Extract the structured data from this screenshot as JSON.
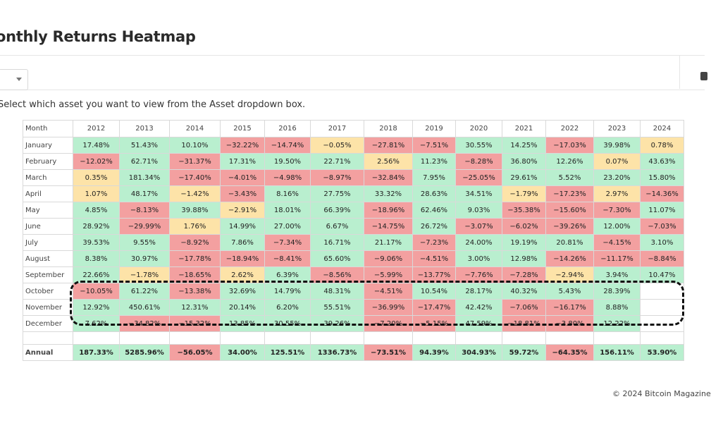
{
  "page": {
    "title": "onthly Returns Heatmap",
    "instruction": "Select which asset you want to view from the Asset dropdown box.",
    "footer": "© 2024 Bitcoin Magazine"
  },
  "colors": {
    "positive": "#b9efcf",
    "negative": "#f3a0a0",
    "mild": "#fde3a8"
  },
  "chart_data": {
    "type": "heatmap",
    "row_header": "Month",
    "years": [
      "2012",
      "2013",
      "2014",
      "2015",
      "2016",
      "2017",
      "2018",
      "2019",
      "2020",
      "2021",
      "2022",
      "2023",
      "2024"
    ],
    "rows": [
      {
        "label": "January",
        "cells": [
          {
            "t": "17.48%",
            "c": "pos"
          },
          {
            "t": "51.43%",
            "c": "pos"
          },
          {
            "t": "10.10%",
            "c": "pos"
          },
          {
            "t": "−32.22%",
            "c": "neg"
          },
          {
            "t": "−14.74%",
            "c": "neg"
          },
          {
            "t": "−0.05%",
            "c": "mild"
          },
          {
            "t": "−27.81%",
            "c": "neg"
          },
          {
            "t": "−7.51%",
            "c": "neg"
          },
          {
            "t": "30.55%",
            "c": "pos"
          },
          {
            "t": "14.25%",
            "c": "pos"
          },
          {
            "t": "−17.03%",
            "c": "neg"
          },
          {
            "t": "39.98%",
            "c": "pos"
          },
          {
            "t": "0.78%",
            "c": "mild"
          }
        ]
      },
      {
        "label": "February",
        "cells": [
          {
            "t": "−12.02%",
            "c": "neg"
          },
          {
            "t": "62.71%",
            "c": "pos"
          },
          {
            "t": "−31.37%",
            "c": "neg"
          },
          {
            "t": "17.31%",
            "c": "pos"
          },
          {
            "t": "19.50%",
            "c": "pos"
          },
          {
            "t": "22.71%",
            "c": "pos"
          },
          {
            "t": "2.56%",
            "c": "mild"
          },
          {
            "t": "11.23%",
            "c": "pos"
          },
          {
            "t": "−8.28%",
            "c": "neg"
          },
          {
            "t": "36.80%",
            "c": "pos"
          },
          {
            "t": "12.26%",
            "c": "pos"
          },
          {
            "t": "0.07%",
            "c": "mild"
          },
          {
            "t": "43.63%",
            "c": "pos"
          }
        ]
      },
      {
        "label": "March",
        "cells": [
          {
            "t": "0.35%",
            "c": "mild"
          },
          {
            "t": "181.34%",
            "c": "pos"
          },
          {
            "t": "−17.40%",
            "c": "neg"
          },
          {
            "t": "−4.01%",
            "c": "neg"
          },
          {
            "t": "−4.98%",
            "c": "neg"
          },
          {
            "t": "−8.97%",
            "c": "neg"
          },
          {
            "t": "−32.84%",
            "c": "neg"
          },
          {
            "t": "7.95%",
            "c": "pos"
          },
          {
            "t": "−25.05%",
            "c": "neg"
          },
          {
            "t": "29.61%",
            "c": "pos"
          },
          {
            "t": "5.52%",
            "c": "pos"
          },
          {
            "t": "23.20%",
            "c": "pos"
          },
          {
            "t": "15.80%",
            "c": "pos"
          }
        ]
      },
      {
        "label": "April",
        "cells": [
          {
            "t": "1.07%",
            "c": "mild"
          },
          {
            "t": "48.17%",
            "c": "pos"
          },
          {
            "t": "−1.42%",
            "c": "mild"
          },
          {
            "t": "−3.43%",
            "c": "neg"
          },
          {
            "t": "8.16%",
            "c": "pos"
          },
          {
            "t": "27.75%",
            "c": "pos"
          },
          {
            "t": "33.32%",
            "c": "pos"
          },
          {
            "t": "28.63%",
            "c": "pos"
          },
          {
            "t": "34.51%",
            "c": "pos"
          },
          {
            "t": "−1.79%",
            "c": "mild"
          },
          {
            "t": "−17.23%",
            "c": "neg"
          },
          {
            "t": "2.97%",
            "c": "mild"
          },
          {
            "t": "−14.36%",
            "c": "neg"
          }
        ]
      },
      {
        "label": "May",
        "cells": [
          {
            "t": "4.85%",
            "c": "pos"
          },
          {
            "t": "−8.13%",
            "c": "neg"
          },
          {
            "t": "39.88%",
            "c": "pos"
          },
          {
            "t": "−2.91%",
            "c": "mild"
          },
          {
            "t": "18.01%",
            "c": "pos"
          },
          {
            "t": "66.39%",
            "c": "pos"
          },
          {
            "t": "−18.96%",
            "c": "neg"
          },
          {
            "t": "62.46%",
            "c": "pos"
          },
          {
            "t": "9.03%",
            "c": "pos"
          },
          {
            "t": "−35.38%",
            "c": "neg"
          },
          {
            "t": "−15.60%",
            "c": "neg"
          },
          {
            "t": "−7.30%",
            "c": "neg"
          },
          {
            "t": "11.07%",
            "c": "pos"
          }
        ]
      },
      {
        "label": "June",
        "cells": [
          {
            "t": "28.92%",
            "c": "pos"
          },
          {
            "t": "−29.99%",
            "c": "neg"
          },
          {
            "t": "1.76%",
            "c": "mild"
          },
          {
            "t": "14.99%",
            "c": "pos"
          },
          {
            "t": "27.00%",
            "c": "pos"
          },
          {
            "t": "6.67%",
            "c": "pos"
          },
          {
            "t": "−14.75%",
            "c": "neg"
          },
          {
            "t": "26.72%",
            "c": "pos"
          },
          {
            "t": "−3.07%",
            "c": "neg"
          },
          {
            "t": "−6.02%",
            "c": "neg"
          },
          {
            "t": "−39.26%",
            "c": "neg"
          },
          {
            "t": "12.00%",
            "c": "pos"
          },
          {
            "t": "−7.03%",
            "c": "neg"
          }
        ]
      },
      {
        "label": "July",
        "cells": [
          {
            "t": "39.53%",
            "c": "pos"
          },
          {
            "t": "9.55%",
            "c": "pos"
          },
          {
            "t": "−8.92%",
            "c": "neg"
          },
          {
            "t": "7.86%",
            "c": "pos"
          },
          {
            "t": "−7.34%",
            "c": "neg"
          },
          {
            "t": "16.71%",
            "c": "pos"
          },
          {
            "t": "21.17%",
            "c": "pos"
          },
          {
            "t": "−7.23%",
            "c": "neg"
          },
          {
            "t": "24.00%",
            "c": "pos"
          },
          {
            "t": "19.19%",
            "c": "pos"
          },
          {
            "t": "20.81%",
            "c": "pos"
          },
          {
            "t": "−4.15%",
            "c": "neg"
          },
          {
            "t": "3.10%",
            "c": "pos"
          }
        ]
      },
      {
        "label": "August",
        "cells": [
          {
            "t": "8.38%",
            "c": "pos"
          },
          {
            "t": "30.97%",
            "c": "pos"
          },
          {
            "t": "−17.78%",
            "c": "neg"
          },
          {
            "t": "−18.94%",
            "c": "neg"
          },
          {
            "t": "−8.41%",
            "c": "neg"
          },
          {
            "t": "65.60%",
            "c": "pos"
          },
          {
            "t": "−9.06%",
            "c": "neg"
          },
          {
            "t": "−4.51%",
            "c": "neg"
          },
          {
            "t": "3.00%",
            "c": "pos"
          },
          {
            "t": "12.98%",
            "c": "pos"
          },
          {
            "t": "−14.26%",
            "c": "neg"
          },
          {
            "t": "−11.17%",
            "c": "neg"
          },
          {
            "t": "−8.84%",
            "c": "neg"
          }
        ]
      },
      {
        "label": "September",
        "cells": [
          {
            "t": "22.66%",
            "c": "pos"
          },
          {
            "t": "−1.78%",
            "c": "mild"
          },
          {
            "t": "−18.65%",
            "c": "neg"
          },
          {
            "t": "2.62%",
            "c": "mild"
          },
          {
            "t": "6.39%",
            "c": "pos"
          },
          {
            "t": "−8.56%",
            "c": "neg"
          },
          {
            "t": "−5.99%",
            "c": "neg"
          },
          {
            "t": "−13.77%",
            "c": "neg"
          },
          {
            "t": "−7.76%",
            "c": "neg"
          },
          {
            "t": "−7.28%",
            "c": "neg"
          },
          {
            "t": "−2.94%",
            "c": "mild"
          },
          {
            "t": "3.94%",
            "c": "pos"
          },
          {
            "t": "10.47%",
            "c": "pos"
          }
        ]
      },
      {
        "label": "October",
        "cells": [
          {
            "t": "−10.05%",
            "c": "neg"
          },
          {
            "t": "61.22%",
            "c": "pos"
          },
          {
            "t": "−13.38%",
            "c": "neg"
          },
          {
            "t": "32.69%",
            "c": "pos"
          },
          {
            "t": "14.79%",
            "c": "pos"
          },
          {
            "t": "48.31%",
            "c": "pos"
          },
          {
            "t": "−4.51%",
            "c": "neg"
          },
          {
            "t": "10.54%",
            "c": "pos"
          },
          {
            "t": "28.17%",
            "c": "pos"
          },
          {
            "t": "40.32%",
            "c": "pos"
          },
          {
            "t": "5.43%",
            "c": "pos"
          },
          {
            "t": "28.39%",
            "c": "pos"
          },
          {
            "t": "",
            "c": "empty"
          }
        ]
      },
      {
        "label": "November",
        "cells": [
          {
            "t": "12.92%",
            "c": "pos"
          },
          {
            "t": "450.61%",
            "c": "pos"
          },
          {
            "t": "12.31%",
            "c": "pos"
          },
          {
            "t": "20.14%",
            "c": "pos"
          },
          {
            "t": "6.20%",
            "c": "pos"
          },
          {
            "t": "55.51%",
            "c": "pos"
          },
          {
            "t": "−36.99%",
            "c": "neg"
          },
          {
            "t": "−17.47%",
            "c": "neg"
          },
          {
            "t": "42.42%",
            "c": "pos"
          },
          {
            "t": "−7.06%",
            "c": "neg"
          },
          {
            "t": "−16.17%",
            "c": "neg"
          },
          {
            "t": "8.88%",
            "c": "pos"
          },
          {
            "t": "",
            "c": "empty"
          }
        ]
      },
      {
        "label": "December",
        "cells": [
          {
            "t": "7.62%",
            "c": "pos"
          },
          {
            "t": "−34.82%",
            "c": "neg"
          },
          {
            "t": "−15.32%",
            "c": "neg"
          },
          {
            "t": "13.85%",
            "c": "pos"
          },
          {
            "t": "30.55%",
            "c": "pos"
          },
          {
            "t": "39.26%",
            "c": "pos"
          },
          {
            "t": "−7.20%",
            "c": "neg"
          },
          {
            "t": "−5.15%",
            "c": "neg"
          },
          {
            "t": "47.59%",
            "c": "pos"
          },
          {
            "t": "−18.81%",
            "c": "neg"
          },
          {
            "t": "−3.80%",
            "c": "neg"
          },
          {
            "t": "12.22%",
            "c": "pos"
          },
          {
            "t": "",
            "c": "empty"
          }
        ]
      }
    ],
    "annual": {
      "label": "Annual",
      "cells": [
        {
          "t": "187.33%",
          "c": "pos"
        },
        {
          "t": "5285.96%",
          "c": "pos"
        },
        {
          "t": "−56.05%",
          "c": "neg"
        },
        {
          "t": "34.00%",
          "c": "pos"
        },
        {
          "t": "125.51%",
          "c": "pos"
        },
        {
          "t": "1336.73%",
          "c": "pos"
        },
        {
          "t": "−73.51%",
          "c": "neg"
        },
        {
          "t": "94.39%",
          "c": "pos"
        },
        {
          "t": "304.93%",
          "c": "pos"
        },
        {
          "t": "59.72%",
          "c": "pos"
        },
        {
          "t": "−64.35%",
          "c": "neg"
        },
        {
          "t": "156.11%",
          "c": "pos"
        },
        {
          "t": "53.90%",
          "c": "pos"
        }
      ]
    }
  }
}
